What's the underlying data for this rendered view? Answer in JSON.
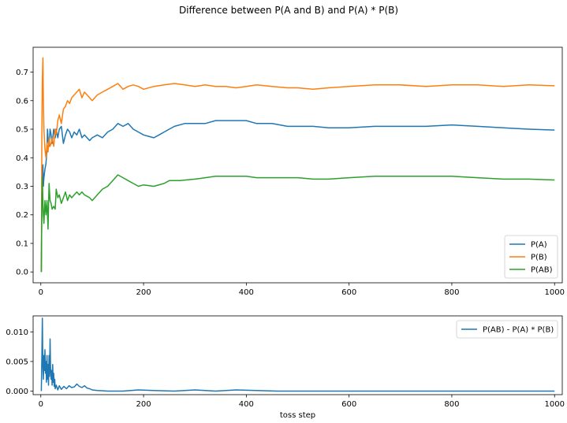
{
  "title": "Difference between P(A and B) and P(A) * P(B)",
  "chart_data": [
    {
      "type": "line",
      "xlim": [
        -15,
        1015
      ],
      "ylim": [
        -0.038,
        0.787
      ],
      "xticks": [
        0,
        200,
        400,
        600,
        800,
        1000
      ],
      "yticks": [
        0.0,
        0.1,
        0.2,
        0.3,
        0.4,
        0.5,
        0.6,
        0.7
      ],
      "xtick_labels": [
        "0",
        "200",
        "400",
        "600",
        "800",
        "1000"
      ],
      "ytick_labels": [
        "0.0",
        "0.1",
        "0.2",
        "0.3",
        "0.4",
        "0.5",
        "0.6",
        "0.7"
      ],
      "grid": false,
      "legend_position": "lower-right",
      "series": [
        {
          "name": "P(A)",
          "color": "#1f77b4",
          "points": [
            [
              1,
              0.0
            ],
            [
              2,
              0.25
            ],
            [
              3,
              0.33
            ],
            [
              4,
              0.375
            ],
            [
              5,
              0.3
            ],
            [
              6,
              0.33
            ],
            [
              8,
              0.36
            ],
            [
              10,
              0.38
            ],
            [
              12,
              0.43
            ],
            [
              13,
              0.5
            ],
            [
              14,
              0.47
            ],
            [
              16,
              0.44
            ],
            [
              18,
              0.5
            ],
            [
              20,
              0.48
            ],
            [
              22,
              0.45
            ],
            [
              25,
              0.5
            ],
            [
              28,
              0.47
            ],
            [
              30,
              0.5
            ],
            [
              33,
              0.47
            ],
            [
              36,
              0.5
            ],
            [
              40,
              0.51
            ],
            [
              44,
              0.45
            ],
            [
              48,
              0.48
            ],
            [
              52,
              0.5
            ],
            [
              56,
              0.49
            ],
            [
              60,
              0.47
            ],
            [
              65,
              0.49
            ],
            [
              70,
              0.48
            ],
            [
              75,
              0.5
            ],
            [
              80,
              0.47
            ],
            [
              85,
              0.48
            ],
            [
              90,
              0.47
            ],
            [
              95,
              0.46
            ],
            [
              100,
              0.47
            ],
            [
              110,
              0.48
            ],
            [
              120,
              0.47
            ],
            [
              130,
              0.49
            ],
            [
              140,
              0.5
            ],
            [
              150,
              0.52
            ],
            [
              160,
              0.51
            ],
            [
              170,
              0.52
            ],
            [
              180,
              0.5
            ],
            [
              190,
              0.49
            ],
            [
              200,
              0.48
            ],
            [
              210,
              0.475
            ],
            [
              220,
              0.47
            ],
            [
              230,
              0.48
            ],
            [
              240,
              0.49
            ],
            [
              250,
              0.5
            ],
            [
              260,
              0.51
            ],
            [
              280,
              0.52
            ],
            [
              300,
              0.52
            ],
            [
              320,
              0.52
            ],
            [
              340,
              0.53
            ],
            [
              360,
              0.53
            ],
            [
              380,
              0.53
            ],
            [
              400,
              0.53
            ],
            [
              420,
              0.52
            ],
            [
              450,
              0.52
            ],
            [
              480,
              0.51
            ],
            [
              500,
              0.51
            ],
            [
              530,
              0.51
            ],
            [
              560,
              0.505
            ],
            [
              600,
              0.505
            ],
            [
              650,
              0.51
            ],
            [
              700,
              0.51
            ],
            [
              750,
              0.51
            ],
            [
              800,
              0.515
            ],
            [
              850,
              0.51
            ],
            [
              900,
              0.505
            ],
            [
              950,
              0.5
            ],
            [
              1000,
              0.497
            ]
          ]
        },
        {
          "name": "P(B)",
          "color": "#ff7f0e",
          "points": [
            [
              1,
              0.0
            ],
            [
              2,
              0.5
            ],
            [
              3,
              0.67
            ],
            [
              4,
              0.75
            ],
            [
              5,
              0.6
            ],
            [
              6,
              0.5
            ],
            [
              8,
              0.43
            ],
            [
              10,
              0.4
            ],
            [
              12,
              0.45
            ],
            [
              14,
              0.42
            ],
            [
              16,
              0.47
            ],
            [
              18,
              0.44
            ],
            [
              20,
              0.45
            ],
            [
              22,
              0.47
            ],
            [
              25,
              0.44
            ],
            [
              28,
              0.5
            ],
            [
              30,
              0.48
            ],
            [
              33,
              0.53
            ],
            [
              36,
              0.55
            ],
            [
              40,
              0.52
            ],
            [
              44,
              0.57
            ],
            [
              48,
              0.58
            ],
            [
              52,
              0.6
            ],
            [
              56,
              0.59
            ],
            [
              60,
              0.61
            ],
            [
              65,
              0.62
            ],
            [
              70,
              0.63
            ],
            [
              75,
              0.64
            ],
            [
              80,
              0.61
            ],
            [
              85,
              0.63
            ],
            [
              90,
              0.62
            ],
            [
              95,
              0.61
            ],
            [
              100,
              0.6
            ],
            [
              110,
              0.62
            ],
            [
              120,
              0.63
            ],
            [
              130,
              0.64
            ],
            [
              140,
              0.65
            ],
            [
              150,
              0.66
            ],
            [
              160,
              0.64
            ],
            [
              170,
              0.65
            ],
            [
              180,
              0.655
            ],
            [
              190,
              0.65
            ],
            [
              200,
              0.64
            ],
            [
              220,
              0.65
            ],
            [
              240,
              0.655
            ],
            [
              260,
              0.66
            ],
            [
              280,
              0.655
            ],
            [
              300,
              0.65
            ],
            [
              320,
              0.655
            ],
            [
              340,
              0.65
            ],
            [
              360,
              0.65
            ],
            [
              380,
              0.645
            ],
            [
              400,
              0.65
            ],
            [
              420,
              0.655
            ],
            [
              450,
              0.65
            ],
            [
              480,
              0.645
            ],
            [
              500,
              0.645
            ],
            [
              530,
              0.64
            ],
            [
              560,
              0.645
            ],
            [
              600,
              0.65
            ],
            [
              650,
              0.655
            ],
            [
              700,
              0.655
            ],
            [
              750,
              0.65
            ],
            [
              800,
              0.655
            ],
            [
              850,
              0.655
            ],
            [
              900,
              0.65
            ],
            [
              950,
              0.655
            ],
            [
              1000,
              0.652
            ]
          ]
        },
        {
          "name": "P(AB)",
          "color": "#2ca02c",
          "points": [
            [
              1,
              0.0
            ],
            [
              2,
              0.25
            ],
            [
              3,
              0.33
            ],
            [
              4,
              0.25
            ],
            [
              5,
              0.2
            ],
            [
              6,
              0.17
            ],
            [
              8,
              0.25
            ],
            [
              10,
              0.2
            ],
            [
              12,
              0.25
            ],
            [
              14,
              0.15
            ],
            [
              16,
              0.31
            ],
            [
              18,
              0.25
            ],
            [
              20,
              0.24
            ],
            [
              22,
              0.22
            ],
            [
              25,
              0.23
            ],
            [
              28,
              0.22
            ],
            [
              30,
              0.29
            ],
            [
              33,
              0.26
            ],
            [
              36,
              0.27
            ],
            [
              40,
              0.24
            ],
            [
              44,
              0.26
            ],
            [
              48,
              0.28
            ],
            [
              52,
              0.25
            ],
            [
              56,
              0.27
            ],
            [
              60,
              0.26
            ],
            [
              65,
              0.27
            ],
            [
              70,
              0.28
            ],
            [
              75,
              0.27
            ],
            [
              80,
              0.28
            ],
            [
              85,
              0.27
            ],
            [
              90,
              0.265
            ],
            [
              95,
              0.26
            ],
            [
              100,
              0.25
            ],
            [
              110,
              0.27
            ],
            [
              120,
              0.29
            ],
            [
              130,
              0.3
            ],
            [
              140,
              0.32
            ],
            [
              150,
              0.34
            ],
            [
              160,
              0.33
            ],
            [
              170,
              0.32
            ],
            [
              180,
              0.31
            ],
            [
              190,
              0.3
            ],
            [
              200,
              0.305
            ],
            [
              220,
              0.3
            ],
            [
              240,
              0.31
            ],
            [
              250,
              0.32
            ],
            [
              270,
              0.32
            ],
            [
              300,
              0.325
            ],
            [
              320,
              0.33
            ],
            [
              340,
              0.335
            ],
            [
              360,
              0.335
            ],
            [
              380,
              0.335
            ],
            [
              400,
              0.335
            ],
            [
              420,
              0.33
            ],
            [
              450,
              0.33
            ],
            [
              480,
              0.33
            ],
            [
              500,
              0.33
            ],
            [
              530,
              0.325
            ],
            [
              560,
              0.325
            ],
            [
              600,
              0.33
            ],
            [
              650,
              0.335
            ],
            [
              700,
              0.335
            ],
            [
              750,
              0.335
            ],
            [
              800,
              0.335
            ],
            [
              850,
              0.33
            ],
            [
              900,
              0.325
            ],
            [
              950,
              0.325
            ],
            [
              1000,
              0.322
            ]
          ]
        }
      ]
    },
    {
      "type": "line",
      "xlabel": "toss step",
      "xlim": [
        -15,
        1015
      ],
      "ylim": [
        -0.0006,
        0.0127
      ],
      "xticks": [
        0,
        200,
        400,
        600,
        800,
        1000
      ],
      "yticks": [
        0.0,
        0.005,
        0.01
      ],
      "xtick_labels": [
        "0",
        "200",
        "400",
        "600",
        "800",
        "1000"
      ],
      "ytick_labels": [
        "0.000",
        "0.005",
        "0.010"
      ],
      "grid": false,
      "legend_position": "upper-right",
      "series": [
        {
          "name": "P(AB) - P(A) * P(B)",
          "color": "#1f77b4",
          "points": [
            [
              1,
              0.0
            ],
            [
              2,
              0.006
            ],
            [
              3,
              0.0123
            ],
            [
              4,
              0.004
            ],
            [
              5,
              0.002
            ],
            [
              6,
              0.006
            ],
            [
              7,
              0.0035
            ],
            [
              8,
              0.007
            ],
            [
              9,
              0.003
            ],
            [
              10,
              0.005
            ],
            [
              11,
              0.0015
            ],
            [
              12,
              0.006
            ],
            [
              13,
              0.002
            ],
            [
              14,
              0.0045
            ],
            [
              15,
              0.001
            ],
            [
              16,
              0.006
            ],
            [
              17,
              0.0025
            ],
            [
              18,
              0.0088
            ],
            [
              19,
              0.004
            ],
            [
              20,
              0.002
            ],
            [
              21,
              0.0035
            ],
            [
              22,
              0.001
            ],
            [
              23,
              0.0045
            ],
            [
              24,
              0.0015
            ],
            [
              25,
              0.003
            ],
            [
              26,
              0.0008
            ],
            [
              27,
              0.002
            ],
            [
              28,
              0.0004
            ],
            [
              30,
              0.001
            ],
            [
              33,
              0.0002
            ],
            [
              36,
              0.0009
            ],
            [
              40,
              0.0003
            ],
            [
              45,
              0.0008
            ],
            [
              50,
              0.0004
            ],
            [
              55,
              0.0009
            ],
            [
              60,
              0.0006
            ],
            [
              65,
              0.0007
            ],
            [
              70,
              0.0012
            ],
            [
              75,
              0.0008
            ],
            [
              80,
              0.0006
            ],
            [
              85,
              0.0009
            ],
            [
              90,
              0.0005
            ],
            [
              95,
              0.0004
            ],
            [
              100,
              0.0002
            ],
            [
              110,
              0.0001
            ],
            [
              130,
              0.0
            ],
            [
              160,
              0.0
            ],
            [
              190,
              0.0002
            ],
            [
              220,
              0.0001
            ],
            [
              260,
              0.0
            ],
            [
              300,
              0.0002
            ],
            [
              340,
              0.0
            ],
            [
              380,
              0.0002
            ],
            [
              420,
              0.0001
            ],
            [
              460,
              0.0
            ],
            [
              500,
              0.0
            ],
            [
              600,
              0.0
            ],
            [
              700,
              0.0
            ],
            [
              800,
              0.0
            ],
            [
              900,
              0.0
            ],
            [
              1000,
              0.0
            ]
          ]
        }
      ]
    }
  ]
}
